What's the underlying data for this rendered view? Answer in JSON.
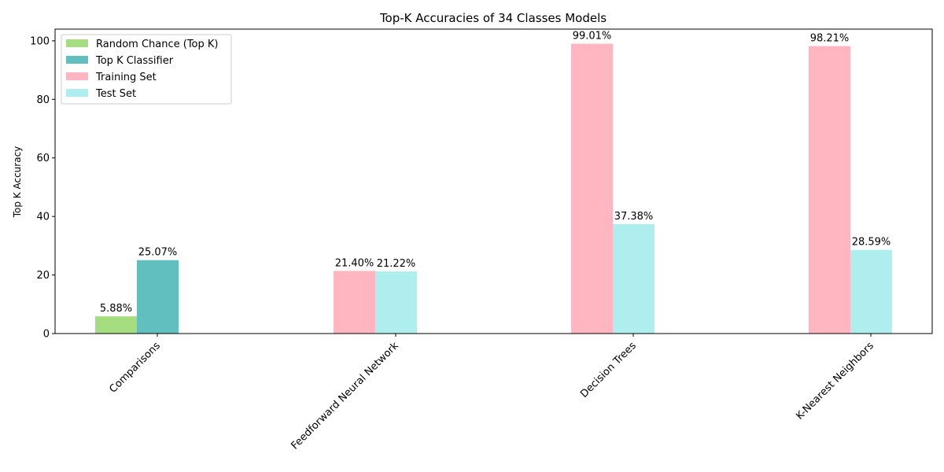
{
  "chart_data": {
    "type": "bar",
    "title": "Top-K Accuracies of 34 Classes Models",
    "xlabel": "",
    "ylabel": "Top K Accuracy",
    "ylim": [
      0,
      104
    ],
    "yticks": [
      0,
      20,
      40,
      60,
      80,
      100
    ],
    "categories": [
      "Comparisons",
      "Feedforward Neural Network",
      "Decision Trees",
      "K-Nearest Neighbors"
    ],
    "series": [
      {
        "name": "Random Chance (Top K)",
        "color": "#a6dd80",
        "values": [
          5.88,
          null,
          null,
          null
        ],
        "labels": [
          "5.88%",
          null,
          null,
          null
        ]
      },
      {
        "name": "Top K Classifier",
        "color": "#62bfbf",
        "values": [
          25.07,
          null,
          null,
          null
        ],
        "labels": [
          "25.07%",
          null,
          null,
          null
        ]
      },
      {
        "name": "Training Set",
        "color": "#ffb6c1",
        "values": [
          null,
          21.4,
          99.01,
          98.21
        ],
        "labels": [
          null,
          "21.40%",
          "99.01%",
          "98.21%"
        ]
      },
      {
        "name": "Test Set",
        "color": "#afeeee",
        "values": [
          null,
          21.22,
          37.38,
          28.59
        ],
        "labels": [
          null,
          "21.22%",
          "37.38%",
          "28.59%"
        ]
      }
    ],
    "legend_position": "top-left",
    "grid": false
  }
}
